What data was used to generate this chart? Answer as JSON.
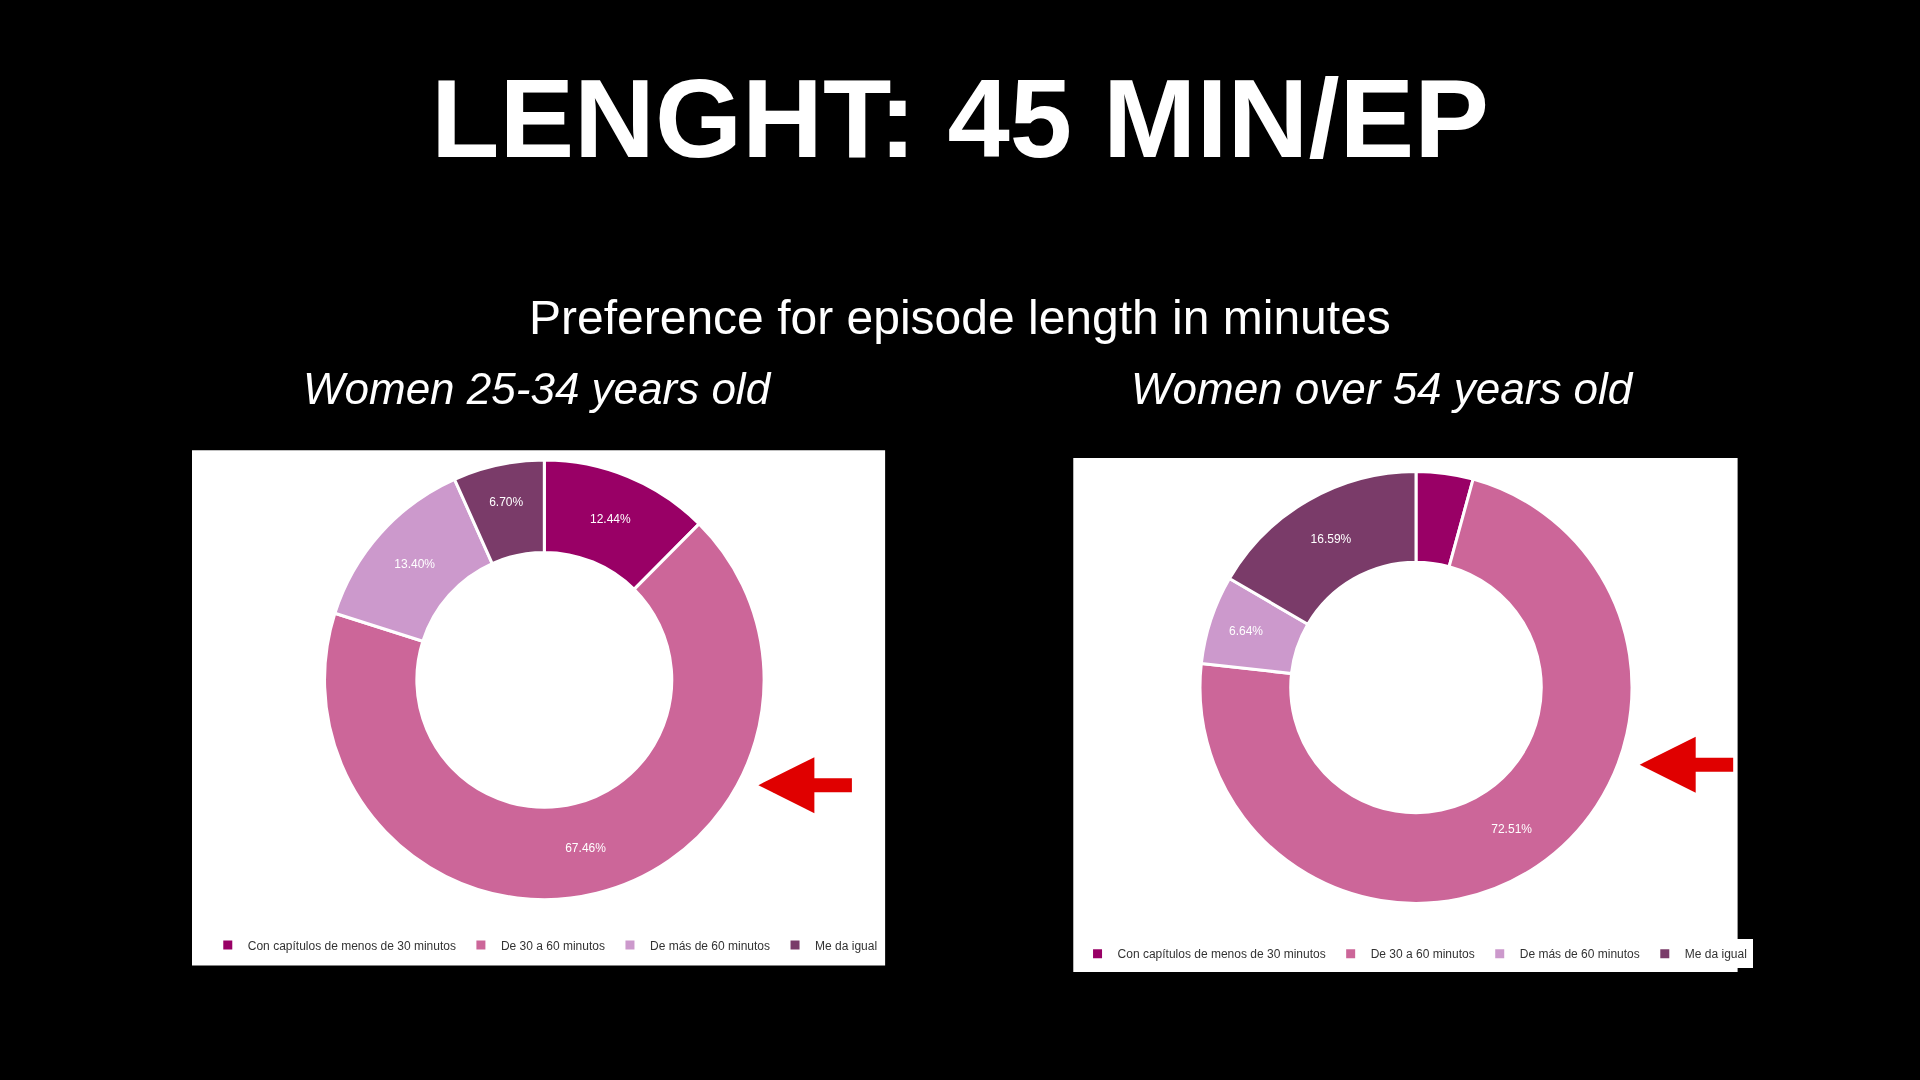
{
  "chart_data": [
    {
      "type": "donut",
      "title": "Women 25-34 years old",
      "annotations": [
        "LENGHT: 45 MIN/EP",
        "Preference for episode length in minutes"
      ],
      "categories": [
        "Con capítulos de menos de 30 minutos",
        "De 30 a 60 minutos",
        "De más de 60 minutos",
        "Me da igual"
      ],
      "values": [
        12.44,
        67.46,
        13.4,
        6.7
      ],
      "value_labels": [
        "12.44%",
        "67.46%",
        "13.40%",
        "6.70%"
      ],
      "colors": [
        "#990066",
        "#cc6699",
        "#cc99cc",
        "#7a3b69"
      ],
      "legend": "bottom"
    },
    {
      "type": "donut",
      "title": "Women over 54 years old",
      "categories": [
        "Con capítulos de menos de 30 minutos",
        "De 30 a 60 minutos",
        "De más de 60 minutos",
        "Me da igual"
      ],
      "values": [
        4.26,
        72.51,
        6.64,
        16.59
      ],
      "value_labels": [
        null,
        "72.51%",
        "6.64%",
        "16.59%"
      ],
      "colors": [
        "#990066",
        "#cc6699",
        "#cc99cc",
        "#7a3b69"
      ],
      "legend": "bottom"
    }
  ]
}
